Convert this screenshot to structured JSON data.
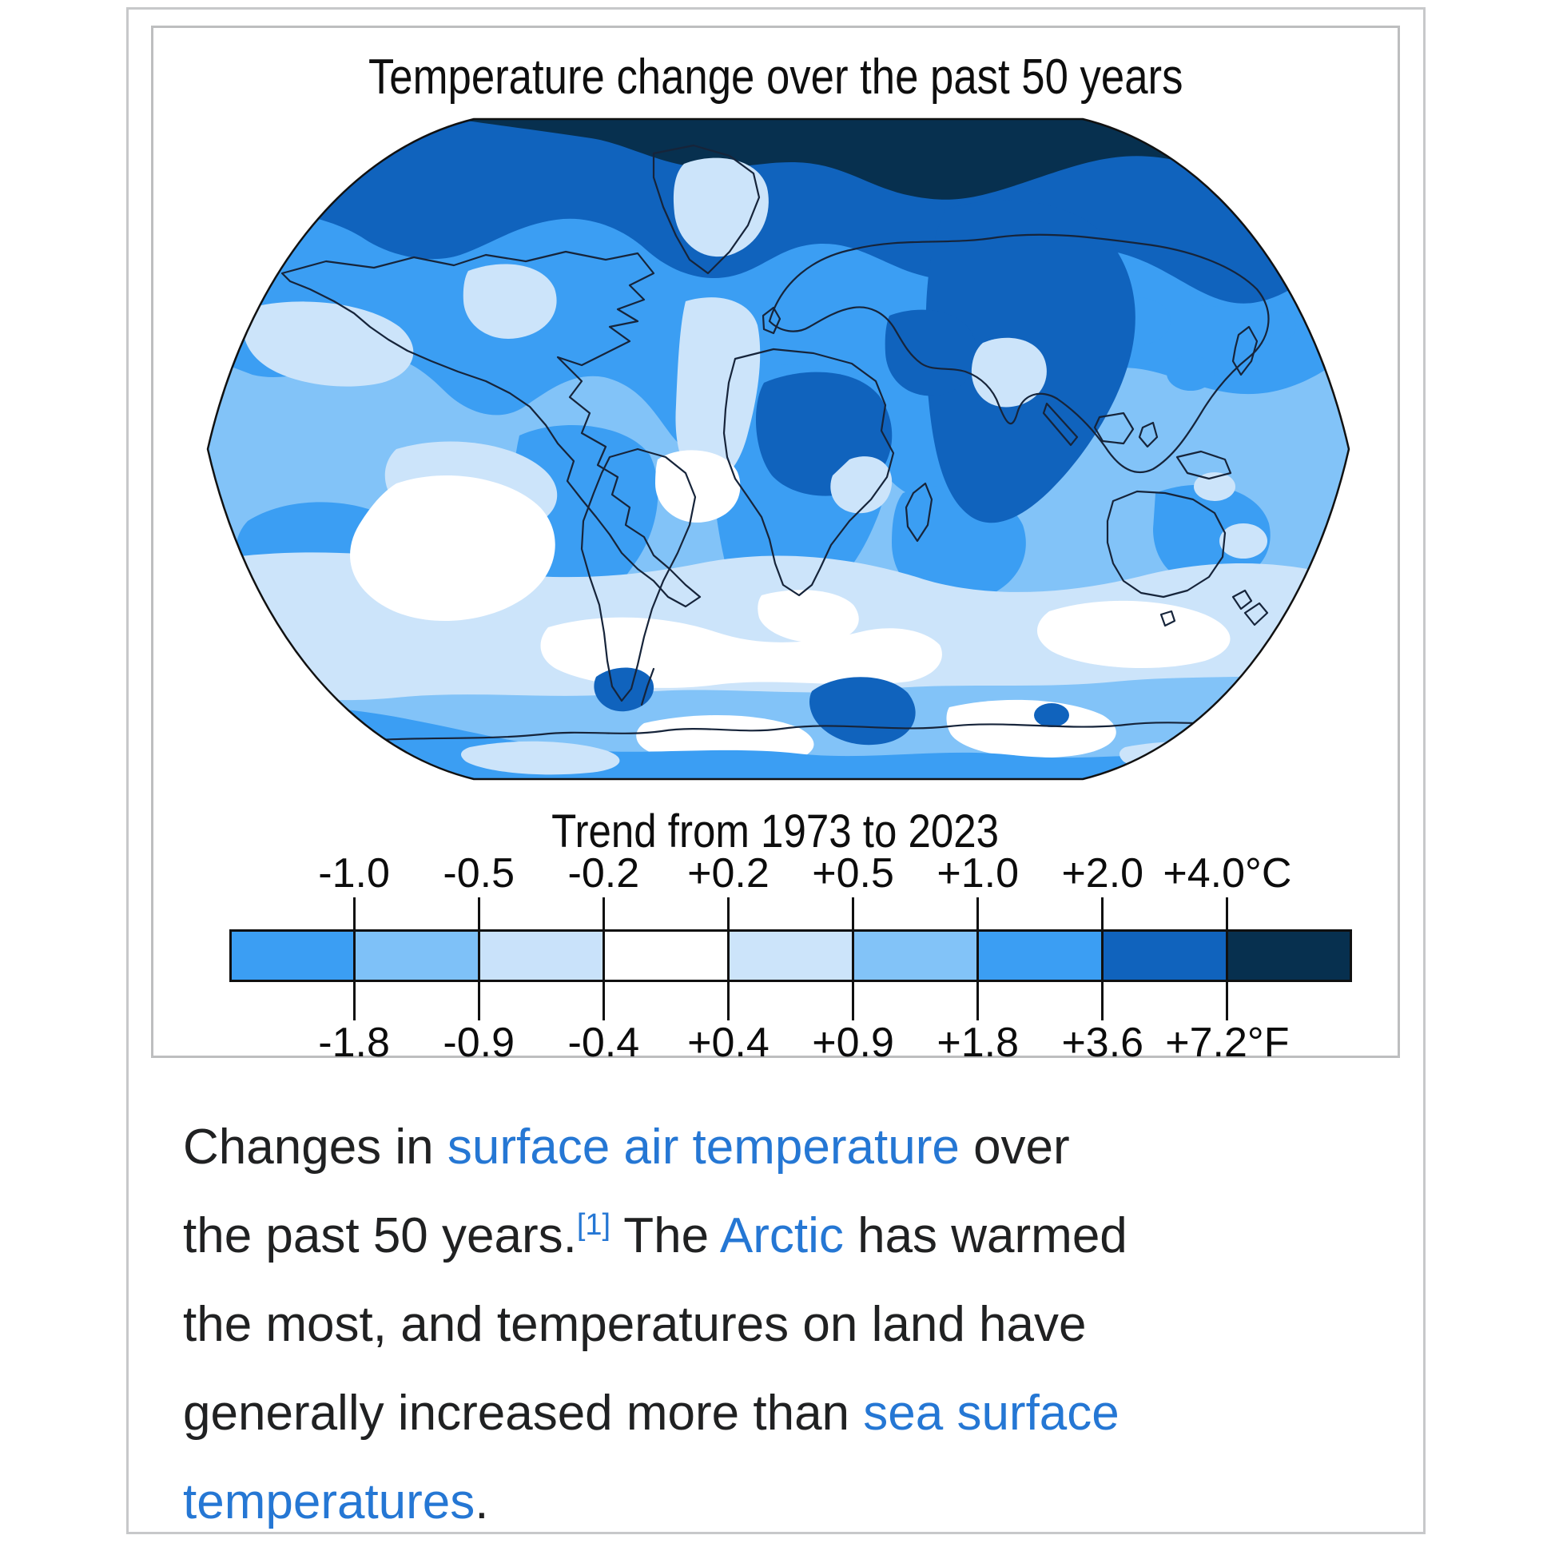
{
  "figure": {
    "title": "Temperature change over the past 50 years",
    "subtitle": "Trend from 1973 to 2023"
  },
  "legend": {
    "celsius_labels": [
      "-1.0",
      "-0.5",
      "-0.2",
      "+0.2",
      "+0.5",
      "+1.0",
      "+2.0",
      "+4.0°C"
    ],
    "fahrenheit_labels": [
      "-1.8",
      "-0.9",
      "-0.4",
      "+0.4",
      "+0.9",
      "+1.8",
      "+3.6",
      "+7.2°F"
    ],
    "segment_colors": [
      "#3B9EF3",
      "#7EC1F8",
      "#C9E2FA",
      "#FFFFFF",
      "#CCE4FA",
      "#82C3F8",
      "#3B9EF3",
      "#1063BD",
      "#07304F"
    ]
  },
  "map": {
    "description": "Robinson-projection world map of surface temperature trend, shaded in blues",
    "coast_color": "#16243a"
  },
  "caption": {
    "text_color": "#202122",
    "link_color": "#2577D4",
    "lines": [
      [
        {
          "t": "Changes in "
        },
        {
          "t": "surface air temperature",
          "link": true
        },
        {
          "t": " over"
        }
      ],
      [
        {
          "t": "the past 50 years."
        },
        {
          "t": "[1]",
          "link": true,
          "sup": true
        },
        {
          "t": " The "
        },
        {
          "t": "Arctic",
          "link": true
        },
        {
          "t": " has warmed"
        }
      ],
      [
        {
          "t": "the most, and temperatures on land have"
        }
      ],
      [
        {
          "t": "generally increased more than "
        },
        {
          "t": "sea surface",
          "link": true
        }
      ],
      [
        {
          "t": "temperatures",
          "link": true
        },
        {
          "t": "."
        }
      ]
    ]
  },
  "chart_data": {
    "type": "heatmap",
    "title": "Temperature change over the past 50 years",
    "subtitle": "Trend from 1973 to 2023",
    "projection": "Robinson world map",
    "units": [
      "°C",
      "°F"
    ],
    "scale_bin_edges_celsius": [
      -1.0,
      -0.5,
      -0.2,
      0.2,
      0.5,
      1.0,
      2.0,
      4.0
    ],
    "scale_bin_edges_fahrenheit": [
      -1.8,
      -0.9,
      -0.4,
      0.4,
      0.9,
      1.8,
      3.6,
      7.2
    ],
    "bin_colors": [
      "#3B9EF3",
      "#7EC1F8",
      "#C9E2FA",
      "#FFFFFF",
      "#CCE4FA",
      "#82C3F8",
      "#3B9EF3",
      "#1063BD",
      "#07304F"
    ],
    "legend_position": "below map",
    "notable_patterns": [
      "Arctic latitudes show the strongest warming, exceeding +4.0°C",
      "Europe, western Russia, the Sahara and Arabia show +2.0 to +4.0°C",
      "Most land areas show +1.0 to +2.0°C",
      "Most ocean areas show +0.5 to +1.0°C",
      "Parts of the Southern Ocean and southeast Pacific show little change (-0.2 to +0.2°C)"
    ]
  }
}
